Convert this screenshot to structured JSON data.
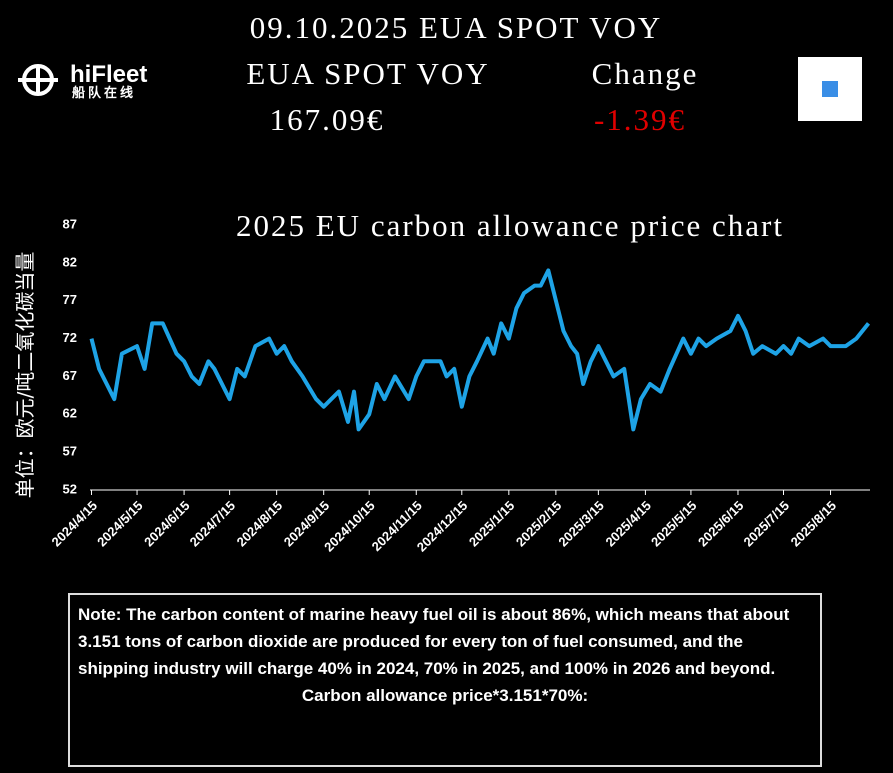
{
  "header": {
    "date_title": "09.10.2025 EUA SPOT VOY",
    "logo_name": "hiFleet",
    "logo_sub": "船队在线",
    "label_left": "EUA SPOT VOY",
    "label_right": "Change",
    "price": "167.09€",
    "change": "-1.39€"
  },
  "chart_data": {
    "type": "line",
    "title": "2025 EU carbon allowance price chart",
    "y_label": "单位：欧元/吨二氧化碳当量",
    "color": "#1ea3e6",
    "x": [
      "2024/4/15",
      "2024/4/20",
      "2024/4/25",
      "2024/4/30",
      "2024/5/5",
      "2024/5/15",
      "2024/5/20",
      "2024/5/25",
      "2024/6/1",
      "2024/6/10",
      "2024/6/15",
      "2024/6/20",
      "2024/6/25",
      "2024/7/1",
      "2024/7/5",
      "2024/7/10",
      "2024/7/15",
      "2024/7/20",
      "2024/7/25",
      "2024/8/1",
      "2024/8/10",
      "2024/8/15",
      "2024/8/20",
      "2024/8/25",
      "2024/9/1",
      "2024/9/10",
      "2024/9/15",
      "2024/9/20",
      "2024/9/25",
      "2024/10/1",
      "2024/10/5",
      "2024/10/8",
      "2024/10/15",
      "2024/10/20",
      "2024/10/25",
      "2024/11/1",
      "2024/11/10",
      "2024/11/15",
      "2024/11/20",
      "2024/11/25",
      "2024/12/1",
      "2024/12/5",
      "2024/12/10",
      "2024/12/15",
      "2024/12/20",
      "2024/12/25",
      "2025/1/1",
      "2025/1/5",
      "2025/1/10",
      "2025/1/15",
      "2025/1/20",
      "2025/1/25",
      "2025/2/1",
      "2025/2/5",
      "2025/2/10",
      "2025/2/15",
      "2025/2/20",
      "2025/2/25",
      "2025/3/1",
      "2025/3/5",
      "2025/3/10",
      "2025/3/15",
      "2025/3/20",
      "2025/3/25",
      "2025/4/1",
      "2025/4/7",
      "2025/4/12",
      "2025/4/18",
      "2025/4/25",
      "2025/5/1",
      "2025/5/10",
      "2025/5/15",
      "2025/5/20",
      "2025/5/25",
      "2025/6/1",
      "2025/6/10",
      "2025/6/15",
      "2025/6/20",
      "2025/6/25",
      "2025/7/1",
      "2025/7/10",
      "2025/7/15",
      "2025/7/20",
      "2025/7/25",
      "2025/8/1",
      "2025/8/10",
      "2025/8/15",
      "2025/8/25",
      "2025/9/1",
      "2025/9/9"
    ],
    "values": [
      72,
      68,
      66,
      64,
      70,
      71,
      68,
      74,
      74,
      70,
      69,
      67,
      66,
      69,
      68,
      66,
      64,
      68,
      67,
      71,
      72,
      70,
      71,
      69,
      67,
      64,
      63,
      64,
      65,
      61,
      65,
      60,
      62,
      66,
      64,
      67,
      64,
      67,
      69,
      69,
      69,
      67,
      68,
      63,
      67,
      69,
      72,
      70,
      74,
      72,
      76,
      78,
      79,
      79,
      81,
      77,
      73,
      71,
      70,
      66,
      69,
      71,
      69,
      67,
      68,
      60,
      64,
      66,
      65,
      68,
      72,
      70,
      72,
      71,
      72,
      73,
      75,
      73,
      70,
      71,
      70,
      71,
      70,
      72,
      71,
      72,
      71,
      71,
      72,
      74
    ],
    "xlim": [
      "2024/4/14",
      "2025/9/10"
    ],
    "xticks": [
      "2024/4/15",
      "2024/5/15",
      "2024/6/15",
      "2024/7/15",
      "2024/8/15",
      "2024/9/15",
      "2024/10/15",
      "2024/11/15",
      "2024/12/15",
      "2025/1/15",
      "2025/2/15",
      "2025/3/15",
      "2025/4/15",
      "2025/5/15",
      "2025/6/15",
      "2025/7/15",
      "2025/8/15"
    ],
    "ylim": [
      52,
      87
    ],
    "yticks": [
      52,
      57,
      62,
      67,
      72,
      77,
      82,
      87
    ]
  },
  "note": {
    "text": "Note: The carbon content of marine heavy fuel oil is about 86%, which means that about 3.151 tons of carbon dioxide are produced for every ton of fuel consumed, and the shipping industry will charge 40% in 2024, 70% in 2025, and 100% in 2026 and beyond.",
    "formula": "Carbon allowance price*3.151*70%:"
  }
}
